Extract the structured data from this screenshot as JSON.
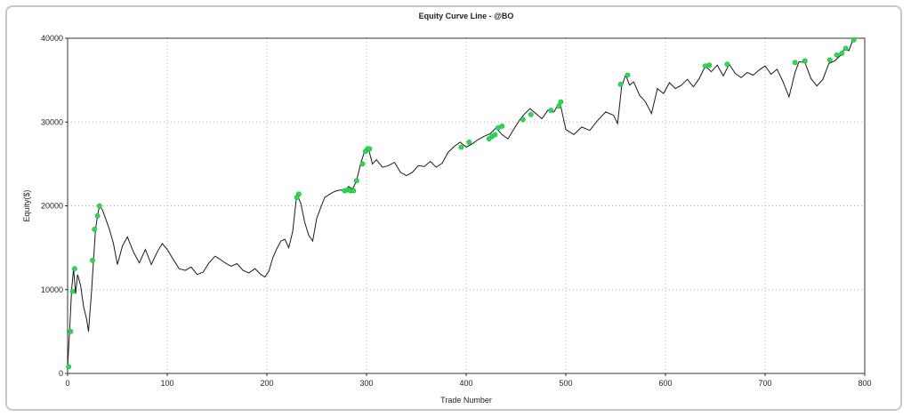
{
  "chart_data": {
    "type": "line",
    "title": "Equity Curve Line - @BO",
    "xlabel": "Trade Number",
    "ylabel": "Equity($)",
    "xlim": [
      0,
      800
    ],
    "ylim": [
      0,
      40000
    ],
    "x_ticks": [
      "0",
      "100",
      "200",
      "300",
      "400",
      "500",
      "600",
      "700",
      "800"
    ],
    "y_ticks": [
      "0",
      "10000",
      "20000",
      "30000",
      "40000"
    ],
    "grid": true,
    "colors": {
      "line": "#1a1a1a",
      "highs": "#22e04a",
      "grid": "#b0b0b0"
    },
    "series": [
      {
        "x": [
          0,
          2,
          4,
          6,
          8,
          10,
          13,
          16,
          19,
          21,
          24,
          26,
          28,
          30,
          32,
          35,
          38,
          42,
          46,
          50,
          55,
          60,
          66,
          72,
          78,
          84,
          90,
          95,
          100,
          106,
          112,
          118,
          124,
          130,
          136,
          142,
          148,
          152,
          158,
          164,
          170,
          176,
          182,
          188,
          194,
          198,
          202,
          206,
          210,
          214,
          218,
          222,
          226,
          230,
          234,
          238,
          242,
          246,
          250,
          254,
          258,
          262,
          266,
          270,
          274,
          278,
          282,
          286,
          290,
          294,
          298,
          302,
          306,
          310,
          316,
          322,
          328,
          334,
          340,
          346,
          352,
          358,
          364,
          370,
          376,
          382,
          388,
          394,
          400,
          406,
          412,
          418,
          424,
          430,
          436,
          442,
          448,
          454,
          458,
          464,
          470,
          476,
          482,
          488,
          494,
          500,
          508,
          516,
          524,
          532,
          540,
          548,
          552,
          556,
          560,
          564,
          568,
          574,
          580,
          586,
          592,
          598,
          604,
          610,
          616,
          622,
          628,
          634,
          640,
          646,
          652,
          658,
          664,
          670,
          676,
          682,
          688,
          694,
          700,
          706,
          712,
          718,
          724,
          730,
          734,
          740,
          746,
          752,
          758,
          764,
          770,
          776,
          780,
          784,
          788
        ],
        "y": [
          800,
          5000,
          10000,
          12500,
          9500,
          11800,
          10500,
          8000,
          6500,
          5000,
          9800,
          13500,
          17200,
          18800,
          20000,
          19500,
          18500,
          17200,
          15500,
          13000,
          15200,
          16300,
          14500,
          13200,
          14800,
          13000,
          14500,
          15500,
          14800,
          13600,
          12500,
          12300,
          12700,
          11800,
          12100,
          13200,
          14000,
          13700,
          13200,
          12800,
          13100,
          12300,
          12000,
          12500,
          11800,
          11500,
          12200,
          13800,
          14900,
          15800,
          16000,
          15000,
          17000,
          21400,
          20300,
          18000,
          16500,
          15800,
          18500,
          19800,
          21000,
          21300,
          21600,
          21800,
          21900,
          21800,
          22300,
          22000,
          23000,
          25000,
          26500,
          26800,
          25000,
          25500,
          24600,
          24800,
          25200,
          24000,
          23600,
          24000,
          24800,
          24700,
          25300,
          24600,
          25100,
          26400,
          27100,
          27600,
          27000,
          27400,
          27900,
          28300,
          28600,
          29300,
          28500,
          28000,
          29200,
          30300,
          30900,
          31600,
          31000,
          30400,
          31400,
          31200,
          32400,
          29100,
          28500,
          29400,
          29000,
          30200,
          31200,
          30800,
          29800,
          34200,
          35600,
          34400,
          34800,
          33200,
          32400,
          31000,
          34000,
          33400,
          34700,
          34000,
          34400,
          35100,
          34200,
          35200,
          36700,
          36000,
          36800,
          35500,
          36900,
          35800,
          35300,
          35900,
          35600,
          36200,
          36700,
          35700,
          36300,
          34800,
          33000,
          35900,
          37200,
          37100,
          35200,
          34300,
          35100,
          37000,
          37300,
          38000,
          38800,
          38500,
          39800
        ]
      }
    ],
    "new_highs": {
      "x": [
        1,
        3,
        5,
        7,
        25,
        27,
        30,
        32,
        230,
        232,
        278,
        281,
        284,
        287,
        290,
        296,
        299,
        301,
        303,
        395,
        403,
        423,
        426,
        429,
        432,
        436,
        457,
        465,
        485,
        493,
        495,
        555,
        562,
        640,
        644,
        662,
        730,
        740,
        765,
        772,
        777,
        781,
        789
      ],
      "y": [
        800,
        5000,
        9800,
        12500,
        13500,
        17200,
        18800,
        20000,
        21000,
        21400,
        21800,
        21900,
        21800,
        21800,
        23000,
        25000,
        26500,
        26800,
        26800,
        27000,
        27600,
        28000,
        28300,
        28500,
        29300,
        29500,
        30300,
        30900,
        31400,
        31900,
        32400,
        34500,
        35600,
        36700,
        36800,
        36900,
        37100,
        37300,
        37400,
        38000,
        38200,
        38800,
        39800
      ]
    }
  }
}
